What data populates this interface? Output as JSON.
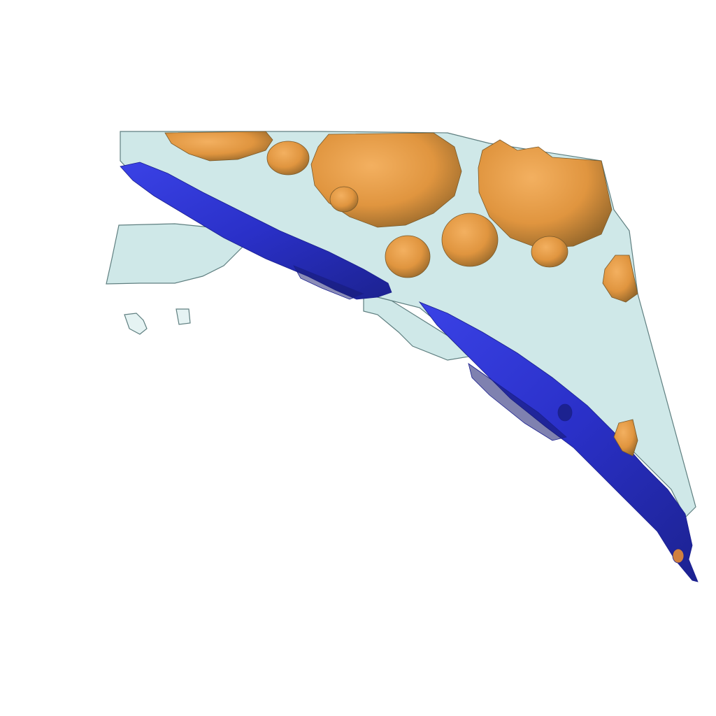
{
  "scene": {
    "background": "#ffffff",
    "colors": {
      "membrane_fill": "#bfe0e0",
      "membrane_edge": "#5f7f80",
      "vessel": "#2f35d6",
      "vessel_dark": "#1a1f8f",
      "nodule": "#e8963f",
      "nodule_dark": "#b8782e",
      "nodule_shadow": "#7a5a2a"
    },
    "layers": [
      "membrane-sheet",
      "blue-vessel-structures",
      "orange-nodules"
    ]
  }
}
